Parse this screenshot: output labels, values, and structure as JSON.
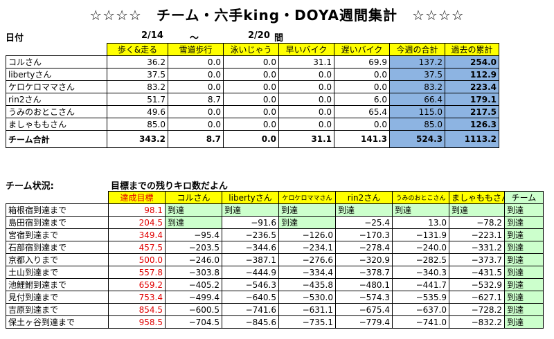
{
  "title": "☆☆☆☆　チーム・六手king・DOYA週間集計　☆☆☆☆",
  "dates": {
    "label": "日付",
    "start": "2/14",
    "tilde": "～",
    "end": "2/20",
    "suffix": "間"
  },
  "weekly": {
    "headers": [
      "歩く&走る",
      "雪道歩行",
      "泳いじゃう",
      "早いバイク",
      "遅いバイク",
      "今週の合計",
      "過去の累計"
    ],
    "rows": [
      {
        "name": "コルさん",
        "values": [
          "36.2",
          "0.0",
          "0.0",
          "31.1",
          "69.9",
          "137.2",
          "254.0"
        ]
      },
      {
        "name": "libertyさん",
        "values": [
          "37.5",
          "0.0",
          "0.0",
          "0.0",
          "0.0",
          "37.5",
          "112.9"
        ]
      },
      {
        "name": "ケロケロママさん",
        "values": [
          "83.2",
          "0.0",
          "0.0",
          "0.0",
          "0.0",
          "83.2",
          "223.4"
        ]
      },
      {
        "name": "rin2さん",
        "values": [
          "51.7",
          "8.7",
          "0.0",
          "0.0",
          "6.0",
          "66.4",
          "179.1"
        ]
      },
      {
        "name": "うみのおとこさん",
        "values": [
          "49.6",
          "0.0",
          "0.0",
          "0.0",
          "65.4",
          "115.0",
          "217.5"
        ]
      },
      {
        "name": "ましゃももさん",
        "values": [
          "85.0",
          "0.0",
          "0.0",
          "0.0",
          "0.0",
          "85.0",
          "126.3"
        ]
      }
    ],
    "total": {
      "name": "チーム合計",
      "values": [
        "343.2",
        "8.7",
        "0.0",
        "31.1",
        "141.3",
        "524.3",
        "1113.2"
      ]
    }
  },
  "status": {
    "label": "チーム状況:",
    "subtitle": "目標までの残りキロ数だよん",
    "headers": [
      "達成目標",
      "コルさん",
      "libertyさん",
      "ケロケロママさん",
      "rin2さん",
      "うみのおとこさん",
      "ましゃももさん",
      "チーム"
    ],
    "rows": [
      {
        "name": "箱根宿到達まで",
        "goal": "98.1",
        "values": [
          "到達",
          "到達",
          "到達",
          "到達",
          "到達",
          "到達",
          "到達"
        ]
      },
      {
        "name": "島田宿到達まで",
        "goal": "204.5",
        "values": [
          "到達",
          "−91.6",
          "到達",
          "−25.4",
          "13.0",
          "−78.2",
          "到達"
        ]
      },
      {
        "name": "宮宿到達まで",
        "goal": "349.4",
        "values": [
          "−95.4",
          "−236.5",
          "−126.0",
          "−170.3",
          "−131.9",
          "−223.1",
          "到達"
        ]
      },
      {
        "name": "石部宿到達まで",
        "goal": "457.5",
        "values": [
          "−203.5",
          "−344.6",
          "−234.1",
          "−278.4",
          "−240.0",
          "−331.2",
          "到達"
        ]
      },
      {
        "name": "京都入りまで",
        "goal": "500.0",
        "values": [
          "−246.0",
          "−387.1",
          "−276.6",
          "−320.9",
          "−282.5",
          "−373.7",
          "到達"
        ]
      },
      {
        "name": "土山到達まで",
        "goal": "557.8",
        "values": [
          "−303.8",
          "−444.9",
          "−334.4",
          "−378.7",
          "−340.3",
          "−431.5",
          "到達"
        ]
      },
      {
        "name": "池鯉鮒到達まで",
        "goal": "659.2",
        "values": [
          "−405.2",
          "−546.3",
          "−435.8",
          "−480.1",
          "−441.7",
          "−532.9",
          "到達"
        ]
      },
      {
        "name": "見付到達まで",
        "goal": "753.4",
        "values": [
          "−499.4",
          "−640.5",
          "−530.0",
          "−574.3",
          "−535.9",
          "−627.1",
          "到達"
        ]
      },
      {
        "name": "吉原到達まで",
        "goal": "854.5",
        "values": [
          "−600.5",
          "−741.6",
          "−631.1",
          "−675.4",
          "−637.0",
          "−728.2",
          "到達"
        ]
      },
      {
        "name": "保土ヶ谷到達まで",
        "goal": "958.5",
        "values": [
          "−704.5",
          "−845.6",
          "−735.1",
          "−779.4",
          "−741.0",
          "−832.2",
          "到達"
        ]
      }
    ]
  }
}
